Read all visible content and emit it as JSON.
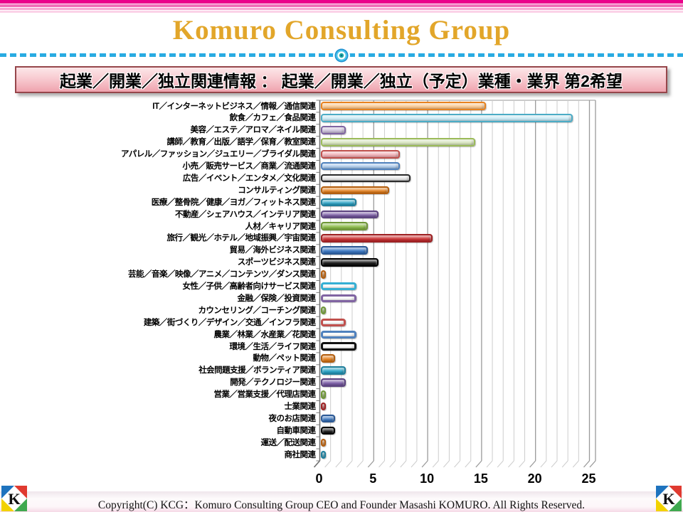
{
  "header": {
    "title": "Komuro Consulting Group",
    "banner_title": "起業／開業／独立関連情報 ： 起業／開業／独立（予定）業種・業界 第2希望"
  },
  "chart_data": {
    "type": "bar",
    "orientation": "horizontal",
    "title": "起業／開業／独立（予定）業種・業界 第2希望",
    "xlim": [
      0,
      25
    ],
    "xticks": [
      0,
      5,
      10,
      15,
      20,
      25
    ],
    "grid": "minor vertical gridlines every 1 unit, major every 5 units, 3-D style feet",
    "categories": [
      "IT／インターネットビジネス／情報／通信関連",
      "飲食／カフェ／食品関連",
      "美容／エステ／アロマ／ネイル関連",
      "講師／教育／出版／語学／保育／教室関連",
      "アパレル／ファッション／ジュエリー／ブライダル関連",
      "小売／販売サービス／商業／流通関連",
      "広告／イベント／エンタメ／文化関連",
      "コンサルティング関連",
      "医療／整骨院／健康／ヨガ／フィットネス関連",
      "不動産／シェアハウス／インテリア関連",
      "人材／キャリア関連",
      "旅行／観光／ホテル／地域振興／宇宙関連",
      "貿易／海外ビジネス関連",
      "スポーツビジネス関連",
      "芸能／音楽／映像／アニメ／コンテンツ／ダンス関連",
      "女性／子供／高齢者向けサービス関連",
      "金融／保険／投資関連",
      "カウンセリング／コーチング関連",
      "建築／街づくり／デザイン／交通／インフラ関連",
      "農業／林業／水産業／花関連",
      "環境／生活／ライフ関連",
      "動物／ペット関連",
      "社会問題支援／ボランティア関連",
      "開発／テクノロジー関連",
      "営業／営業支援／代理店関連",
      "士業関連",
      "夜のお店関連",
      "自動車関連",
      "運送／配送関連",
      "商社関連"
    ],
    "values": [
      15,
      23,
      2,
      14,
      7,
      7,
      8,
      6,
      3,
      5,
      4,
      10,
      4,
      5,
      0,
      3,
      3,
      0,
      2,
      3,
      3,
      1,
      2,
      2,
      0,
      0,
      1,
      1,
      0,
      0
    ],
    "bar_colors": [
      {
        "fill": "#FBC890",
        "border": "#E8821E"
      },
      {
        "fill": "#C9EAF5",
        "border": "#4BACC6"
      },
      {
        "fill": "#CCC1DB",
        "border": "#8064A2"
      },
      {
        "fill": "#D7E4BD",
        "border": "#9BBB59"
      },
      {
        "fill": "#F2B0B6",
        "border": "#C0504D"
      },
      {
        "fill": "#A8C8EC",
        "border": "#4F81BD"
      },
      {
        "fill": "#E6E6E6",
        "border": "#2B2B2B"
      },
      {
        "fill": "#E8821E",
        "border": "#B35E0E"
      },
      {
        "fill": "#2BA6C9",
        "border": "#1E7F9C"
      },
      {
        "fill": "#7A5BA6",
        "border": "#5C4380"
      },
      {
        "fill": "#8FBF4D",
        "border": "#6E9637"
      },
      {
        "fill": "#CC3032",
        "border": "#9E2123"
      },
      {
        "fill": "#3A78C4",
        "border": "#2A5895"
      },
      {
        "fill": "#141414",
        "border": "#000000"
      },
      {
        "fill": "#E8821E",
        "border": "#B35E0E"
      },
      {
        "fill": "#FFFFFF",
        "border": "#35AFD4"
      },
      {
        "fill": "#FFFFFF",
        "border": "#8064A2"
      },
      {
        "fill": "#8FBF4D",
        "border": "#6E9637"
      },
      {
        "fill": "#FFFFFF",
        "border": "#C0504D"
      },
      {
        "fill": "#FFFFFF",
        "border": "#4F81BD"
      },
      {
        "fill": "#FFFFFF",
        "border": "#111111"
      },
      {
        "fill": "#E8821E",
        "border": "#B35E0E"
      },
      {
        "fill": "#2BA6C9",
        "border": "#1E7F9C"
      },
      {
        "fill": "#7A5BA6",
        "border": "#5C4380"
      },
      {
        "fill": "#8FBF4D",
        "border": "#6E9637"
      },
      {
        "fill": "#CC3032",
        "border": "#9E2123"
      },
      {
        "fill": "#3A78C4",
        "border": "#2A5895"
      },
      {
        "fill": "#141414",
        "border": "#000000"
      },
      {
        "fill": "#E8821E",
        "border": "#B35E0E"
      },
      {
        "fill": "#2BA6C9",
        "border": "#1E7F9C"
      }
    ]
  },
  "footer": {
    "copyright": "Copyright(C)  KCG：Komuro Consulting Group  CEO and Founder  Masashi KOMURO. All Rights Reserved.",
    "logo_letter": "K",
    "logo_colors": {
      "top_left": "#1E73BE",
      "top_right": "#E03A30",
      "bottom_left": "#F2D200",
      "bottom_right": "#3FA94F"
    }
  },
  "theme": {
    "stripe_pink": "#EB008B",
    "title_gold": "#E2A62A",
    "divider_cyan": "#29ABE2",
    "banner_border": "#96464B"
  }
}
